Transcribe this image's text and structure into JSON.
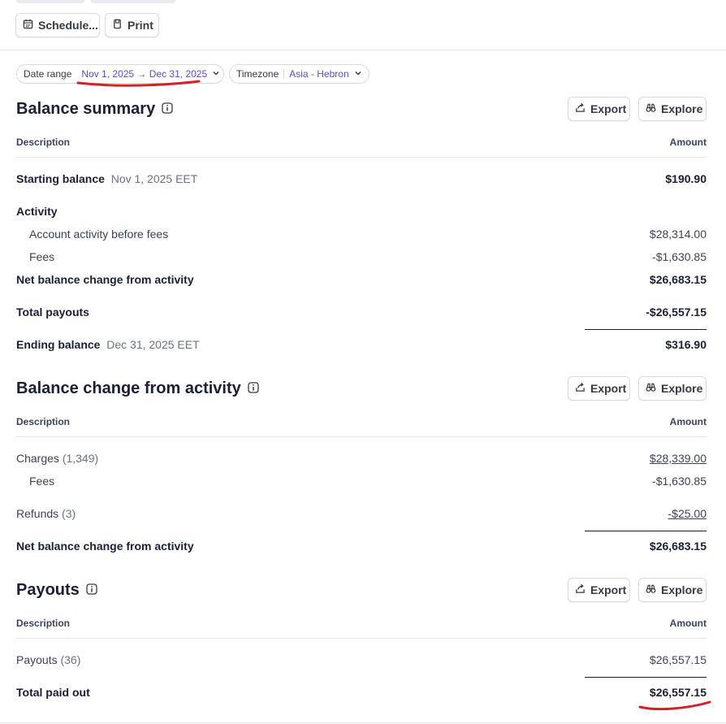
{
  "toolbar": {
    "schedule_label": "Schedule...",
    "print_label": "Print"
  },
  "filters": {
    "date_range_label": "Date range",
    "date_range_value": "Nov 1, 2025 → Dec 31, 2025",
    "timezone_label": "Timezone",
    "timezone_value": "Asia - Hebron"
  },
  "balance_summary": {
    "title": "Balance summary",
    "export_label": "Export",
    "explore_label": "Explore",
    "col_description": "Description",
    "col_amount": "Amount",
    "starting_label": "Starting balance",
    "starting_date": "Nov 1, 2025 EET",
    "starting_amount": "$190.90",
    "activity_label": "Activity",
    "before_fees_label": "Account activity before fees",
    "before_fees_amount": "$28,314.00",
    "fees_label": "Fees",
    "fees_amount": "-$1,630.85",
    "net_label": "Net balance change from activity",
    "net_amount": "$26,683.15",
    "payouts_label": "Total payouts",
    "payouts_amount": "-$26,557.15",
    "ending_label": "Ending balance",
    "ending_date": "Dec 31, 2025 EET",
    "ending_amount": "$316.90"
  },
  "activity": {
    "title": "Balance change from activity",
    "export_label": "Export",
    "explore_label": "Explore",
    "col_description": "Description",
    "col_amount": "Amount",
    "charges_label": "Charges",
    "charges_count": "(1,349)",
    "charges_amount": "$28,339.00",
    "fees_label": "Fees",
    "fees_amount": "-$1,630.85",
    "refunds_label": "Refunds",
    "refunds_count": "(3)",
    "refunds_amount": "-$25.00",
    "net_label": "Net balance change from activity",
    "net_amount": "$26,683.15"
  },
  "payouts": {
    "title": "Payouts",
    "export_label": "Export",
    "explore_label": "Explore",
    "col_description": "Description",
    "col_amount": "Amount",
    "payouts_label": "Payouts",
    "payouts_count": "(36)",
    "payouts_amount": "$26,557.15",
    "total_label": "Total paid out",
    "total_amount": "$26,557.15"
  },
  "colors": {
    "accent": "#5b4ccf",
    "annotation_red": "#d61f26",
    "text": "#1a1f36"
  }
}
